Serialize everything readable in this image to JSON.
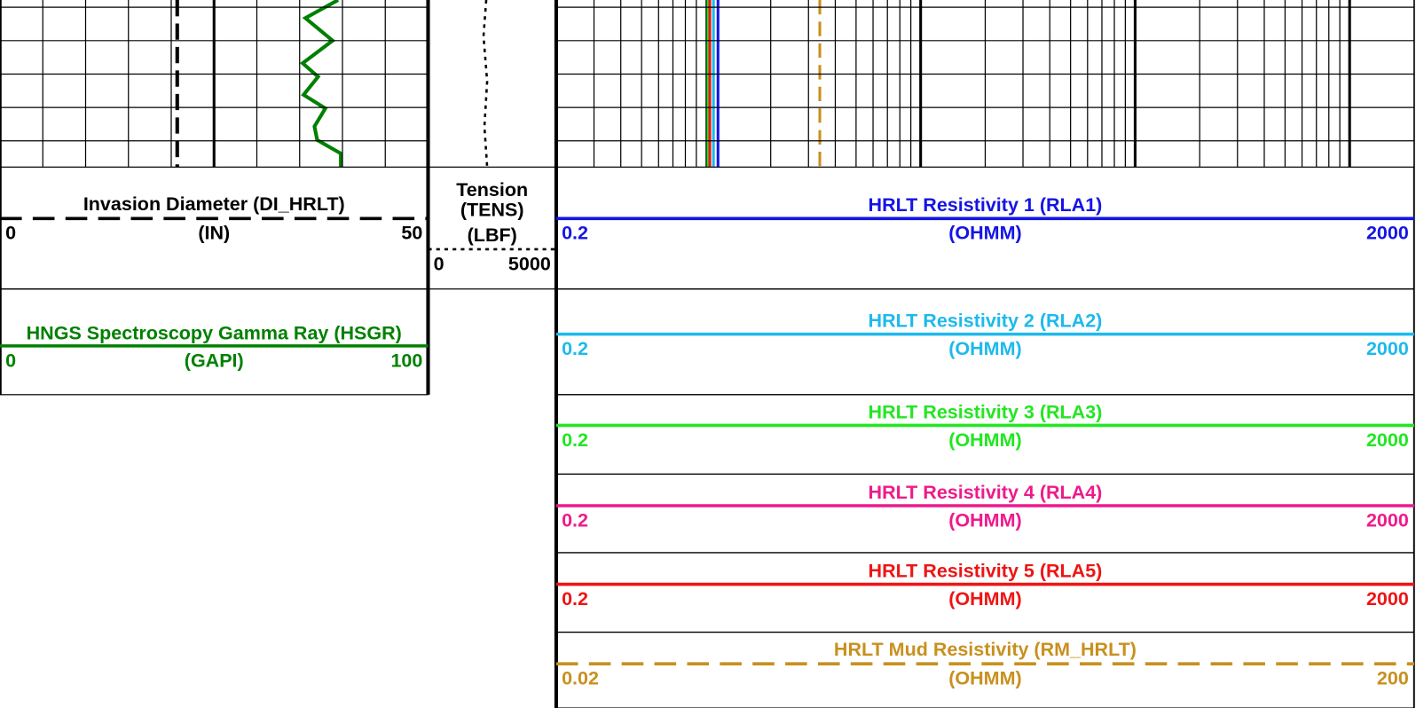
{
  "tracks": [
    {
      "curves": [
        {
          "title": "Invasion Diameter (DI_HRLT)",
          "unit": "(IN)",
          "left": 0,
          "right": 50,
          "color": "#000000",
          "line": "dashed"
        },
        {
          "title": "HNGS Spectroscopy Gamma Ray (HSGR)",
          "unit": "(GAPI)",
          "left": 0,
          "right": 100,
          "color": "#008000",
          "line": "solid"
        }
      ]
    },
    {
      "curves": [
        {
          "title": "Tension (TENS)",
          "unit": "(LBF)",
          "left": 0,
          "right": 5000,
          "color": "#000000",
          "line": "dotted"
        }
      ]
    },
    {
      "curves": [
        {
          "title": "HRLT Resistivity 1 (RLA1)",
          "unit": "(OHMM)",
          "left": 0.2,
          "right": 2000,
          "color": "#1414e6",
          "line": "solid"
        },
        {
          "title": "HRLT Resistivity 2 (RLA2)",
          "unit": "(OHMM)",
          "left": 0.2,
          "right": 2000,
          "color": "#1eb9ec",
          "line": "solid"
        },
        {
          "title": "HRLT Resistivity 3 (RLA3)",
          "unit": "(OHMM)",
          "left": 0.2,
          "right": 2000,
          "color": "#22e622",
          "line": "solid"
        },
        {
          "title": "HRLT Resistivity 4 (RLA4)",
          "unit": "(OHMM)",
          "left": 0.2,
          "right": 2000,
          "color": "#ee1a8c",
          "line": "solid"
        },
        {
          "title": "HRLT Resistivity 5 (RLA5)",
          "unit": "(OHMM)",
          "left": 0.2,
          "right": 2000,
          "color": "#ee1414",
          "line": "solid"
        },
        {
          "title": "HRLT Mud Resistivity (RM_HRLT)",
          "unit": "(OHMM)",
          "left": 0.02,
          "right": 200,
          "color": "#c8901e",
          "line": "dashed"
        }
      ]
    }
  ]
}
